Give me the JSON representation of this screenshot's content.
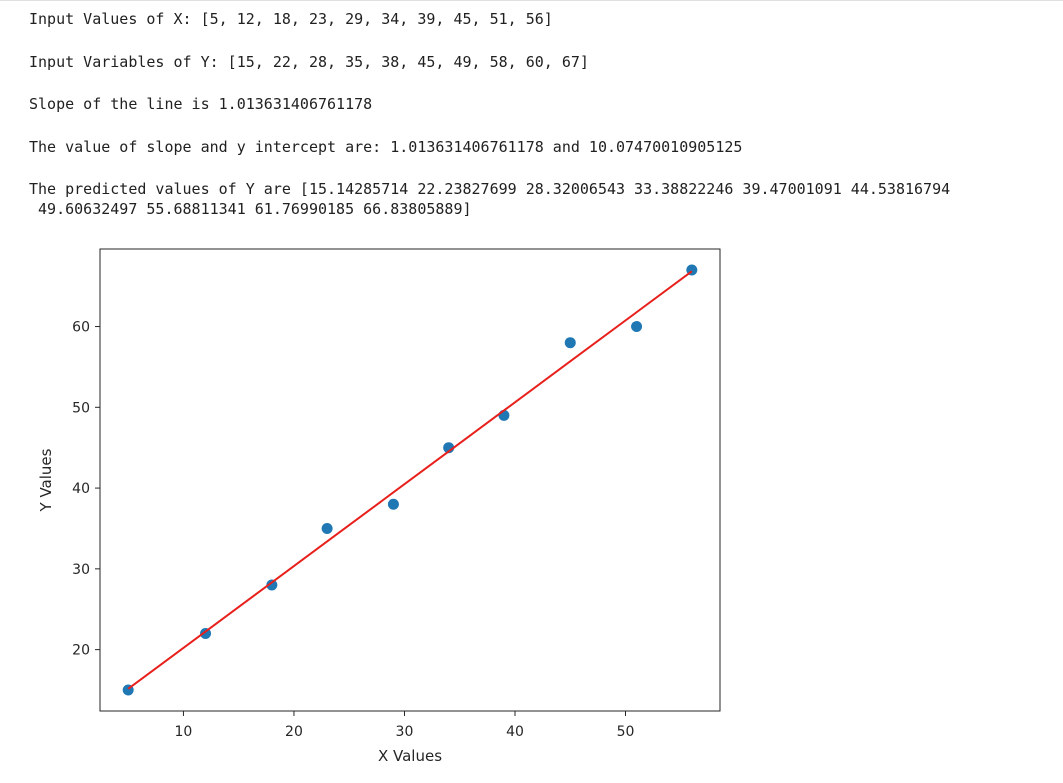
{
  "output": {
    "line1": "Input Values of X: [5, 12, 18, 23, 29, 34, 39, 45, 51, 56]",
    "line2": "Input Variables of Y: [15, 22, 28, 35, 38, 45, 49, 58, 60, 67]",
    "line3": "Slope of the line is 1.013631406761178",
    "line4": "The value of slope and y intercept are: 1.013631406761178 and 10.07470010905125",
    "line5a": "The predicted values of Y are [15.14285714 22.23827699 28.32006543 33.38822246 39.47001091 44.53816794",
    "line5b": " 49.60632497 55.68811341 61.76990185 66.83805889]"
  },
  "chart_data": {
    "type": "scatter",
    "title": "",
    "xlabel": "X Values",
    "ylabel": "Y Values",
    "xlim": [
      2.45,
      58.55
    ],
    "ylim": [
      12.4,
      69.6
    ],
    "xticks": [
      10,
      20,
      30,
      40,
      50
    ],
    "yticks": [
      20,
      30,
      40,
      50,
      60
    ],
    "grid": false,
    "series": [
      {
        "kind": "scatter",
        "color": "#1f77b4",
        "x": [
          5,
          12,
          18,
          23,
          29,
          34,
          39,
          45,
          51,
          56
        ],
        "y": [
          15,
          22,
          28,
          35,
          38,
          45,
          49,
          58,
          60,
          67
        ]
      },
      {
        "kind": "line",
        "color": "#e8201c",
        "x": [
          5,
          12,
          18,
          23,
          29,
          34,
          39,
          45,
          51,
          56
        ],
        "y": [
          15.14285714,
          22.23827699,
          28.32006543,
          33.38822246,
          39.47001091,
          44.53816794,
          49.60632497,
          55.68811341,
          61.76990185,
          66.83805889
        ]
      }
    ]
  }
}
